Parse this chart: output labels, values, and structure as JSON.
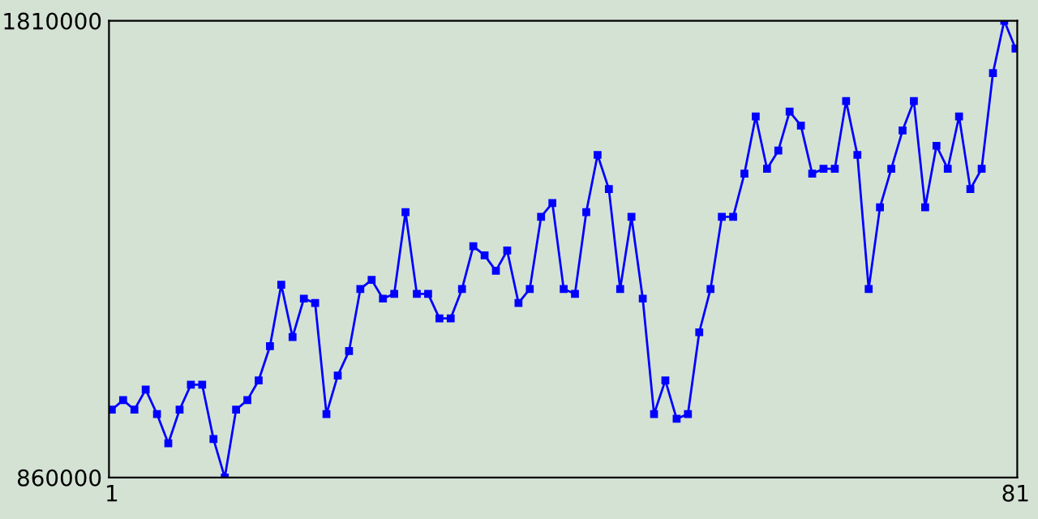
{
  "chart_data": {
    "type": "line",
    "x": [
      1,
      2,
      3,
      4,
      5,
      6,
      7,
      8,
      9,
      10,
      11,
      12,
      13,
      14,
      15,
      16,
      17,
      18,
      19,
      20,
      21,
      22,
      23,
      24,
      25,
      26,
      27,
      28,
      29,
      30,
      31,
      32,
      33,
      34,
      35,
      36,
      37,
      38,
      39,
      40,
      41,
      42,
      43,
      44,
      45,
      46,
      47,
      48,
      49,
      50,
      51,
      52,
      53,
      54,
      55,
      56,
      57,
      58,
      59,
      60,
      61,
      62,
      63,
      64,
      65,
      66,
      67,
      68,
      69,
      70,
      71,
      72,
      73,
      74,
      75,
      76,
      77,
      78,
      79,
      80,
      81
    ],
    "series": [
      {
        "color": "#0000ff",
        "values": [
          1001000,
          1021000,
          1001000,
          1043000,
          992000,
          931000,
          1001000,
          1053000,
          1053000,
          940000,
          860000,
          1001000,
          1021000,
          1062000,
          1133000,
          1261000,
          1152000,
          1232000,
          1223000,
          992000,
          1072000,
          1123000,
          1252000,
          1271000,
          1232000,
          1242000,
          1412000,
          1242000,
          1242000,
          1191000,
          1191000,
          1252000,
          1341000,
          1322000,
          1290000,
          1332000,
          1223000,
          1252000,
          1402000,
          1431000,
          1252000,
          1242000,
          1412000,
          1531000,
          1460000,
          1252000,
          1402000,
          1232000,
          992000,
          1062000,
          982000,
          992000,
          1162000,
          1252000,
          1402000,
          1402000,
          1492000,
          1611000,
          1502000,
          1540000,
          1621000,
          1592000,
          1492000,
          1502000,
          1502000,
          1643000,
          1531000,
          1252000,
          1422000,
          1502000,
          1582000,
          1643000,
          1422000,
          1550000,
          1502000,
          1611000,
          1460000,
          1502000,
          1701000,
          1810000,
          1752000
        ]
      }
    ],
    "xlim": [
      0.75,
      81.15
    ],
    "xticks": [
      1,
      81
    ],
    "ylim": [
      860000,
      1810000
    ],
    "yticks": [
      860000,
      1810000
    ],
    "marker": "square",
    "line_style": "solid",
    "grid": false,
    "legend": false
  }
}
